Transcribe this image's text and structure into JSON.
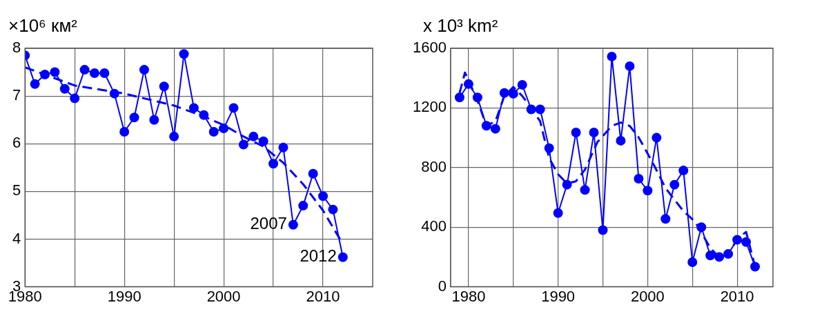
{
  "chart_data": [
    {
      "type": "line",
      "ylabel": "×10⁶ км²",
      "xlim": [
        1980,
        2015
      ],
      "xticks": [
        1980,
        {
          "value": 1985,
          "label": null
        },
        1990,
        {
          "value": 1995,
          "label": null
        },
        2000,
        {
          "value": 2005,
          "label": null
        },
        2010
      ],
      "ylim": [
        3,
        8
      ],
      "yticks": [
        3,
        4,
        5,
        6,
        7,
        8
      ],
      "grid": true,
      "legend": false,
      "series": [
        {
          "color": "#0000ff",
          "marker": "circle",
          "line_style": "solid",
          "x": [
            1980,
            1981,
            1982,
            1983,
            1984,
            1985,
            1986,
            1987,
            1988,
            1989,
            1990,
            1991,
            1992,
            1993,
            1994,
            1995,
            1996,
            1997,
            1998,
            1999,
            2000,
            2001,
            2002,
            2003,
            2004,
            2005,
            2006,
            2007,
            2008,
            2009,
            2010,
            2011,
            2012
          ],
          "values": [
            7.85,
            7.25,
            7.45,
            7.5,
            7.15,
            6.95,
            7.55,
            7.48,
            7.48,
            7.05,
            6.25,
            6.55,
            7.55,
            6.5,
            7.2,
            6.15,
            7.88,
            6.75,
            6.6,
            6.25,
            6.32,
            6.75,
            5.98,
            6.15,
            6.05,
            5.58,
            5.92,
            4.3,
            4.7,
            5.37,
            4.9,
            4.62,
            3.62
          ]
        },
        {
          "color": "#0000ff",
          "marker": "none",
          "line_style": "dashed",
          "x": [
            1980,
            1985,
            1990,
            1995,
            1998,
            2000,
            2002,
            2004,
            2006,
            2008,
            2010,
            2011.7
          ],
          "values": [
            7.6,
            7.22,
            7.05,
            6.8,
            6.57,
            6.39,
            6.15,
            5.94,
            5.6,
            5.15,
            4.6,
            4.0
          ]
        }
      ],
      "annotations": [
        {
          "text": "2007",
          "x": 2007,
          "y": 4.3
        },
        {
          "text": "2012",
          "x": 2012,
          "y": 3.62
        }
      ]
    },
    {
      "type": "line",
      "ylabel": "x 10³ km²",
      "xlim": [
        1978,
        2014
      ],
      "xticks": [
        1980,
        {
          "value": 1985,
          "label": null
        },
        1990,
        {
          "value": 1995,
          "label": null
        },
        2000,
        {
          "value": 2005,
          "label": null
        },
        2010
      ],
      "ylim": [
        0,
        1600
      ],
      "yticks": [
        0,
        400,
        800,
        1200,
        1600
      ],
      "grid": true,
      "legend": false,
      "series": [
        {
          "color": "#0000ff",
          "marker": "circle",
          "line_style": "solid",
          "x": [
            1979,
            1980,
            1981,
            1982,
            1983,
            1984,
            1985,
            1986,
            1987,
            1988,
            1989,
            1990,
            1991,
            1992,
            1993,
            1994,
            1995,
            1996,
            1997,
            1998,
            1999,
            2000,
            2001,
            2002,
            2003,
            2004,
            2005,
            2006,
            2007,
            2008,
            2009,
            2010,
            2011,
            2012
          ],
          "values": [
            1270,
            1360,
            1270,
            1080,
            1060,
            1300,
            1295,
            1355,
            1190,
            1190,
            930,
            495,
            685,
            1035,
            650,
            1035,
            380,
            1545,
            980,
            1480,
            725,
            645,
            1000,
            455,
            685,
            780,
            165,
            400,
            210,
            200,
            220,
            315,
            300,
            135
          ]
        },
        {
          "color": "#0000ff",
          "marker": "none",
          "line_style": "dashed",
          "x": [
            1979,
            1979.6,
            1981,
            1982,
            1983,
            1984,
            1985,
            1986,
            1987,
            1988,
            1989,
            1990,
            1991,
            1992,
            1993,
            1994.4,
            1996,
            1997,
            1998,
            1999,
            2000.7,
            2002,
            2004,
            2005.3,
            2007,
            2008,
            2009,
            2010,
            2011,
            2012
          ],
          "values": [
            1300,
            1437,
            1250,
            1080,
            1110,
            1280,
            1340,
            1280,
            1200,
            1110,
            863,
            755,
            693,
            708,
            786,
            971,
            1079,
            1102,
            1079,
            1002,
            817,
            662,
            507,
            437,
            260,
            198,
            213,
            322,
            368,
            136
          ]
        }
      ]
    }
  ]
}
